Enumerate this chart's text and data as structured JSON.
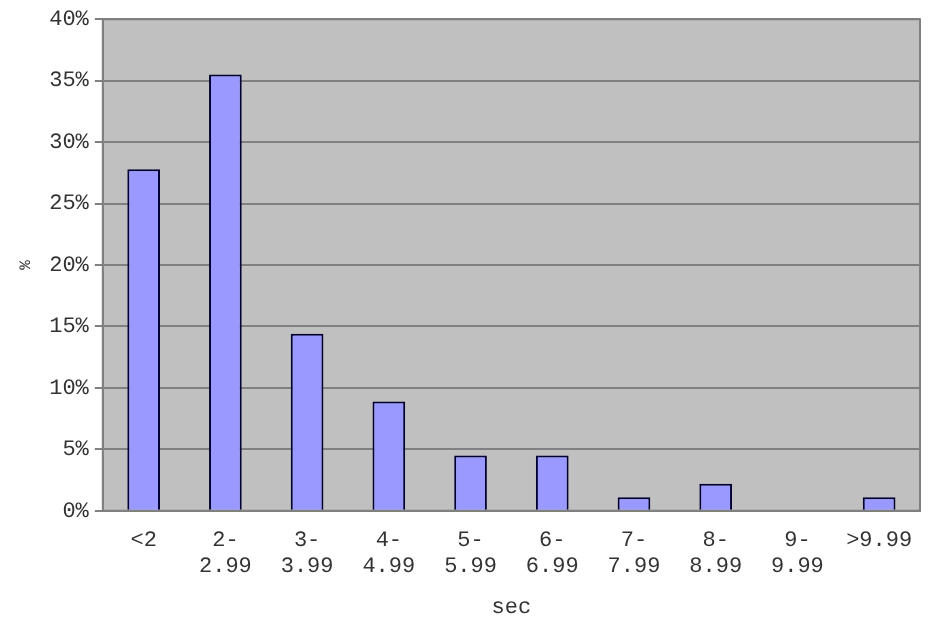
{
  "chart_data": {
    "type": "bar",
    "xlabel": "sec",
    "ylabel": "%",
    "categories": [
      "<2",
      "2-\n2.99",
      "3-\n3.99",
      "4-\n4.99",
      "5-\n5.99",
      "6-\n6.99",
      "7-\n7.99",
      "8-\n8.99",
      "9-\n9.99",
      ">9.99"
    ],
    "values": [
      27.8,
      35.5,
      14.4,
      8.9,
      4.5,
      4.5,
      1.1,
      2.2,
      0,
      1.1
    ],
    "color": "#9999ff",
    "ylim": [
      0,
      40
    ],
    "yticks": [
      {
        "value": 0,
        "label": "0%"
      },
      {
        "value": 5,
        "label": "5%"
      },
      {
        "value": 10,
        "label": "10%"
      },
      {
        "value": 15,
        "label": "15%"
      },
      {
        "value": 20,
        "label": "20%"
      },
      {
        "value": 25,
        "label": "25%"
      },
      {
        "value": 30,
        "label": "30%"
      },
      {
        "value": 35,
        "label": "35%"
      },
      {
        "value": 40,
        "label": "40%"
      }
    ],
    "grid": "y"
  }
}
